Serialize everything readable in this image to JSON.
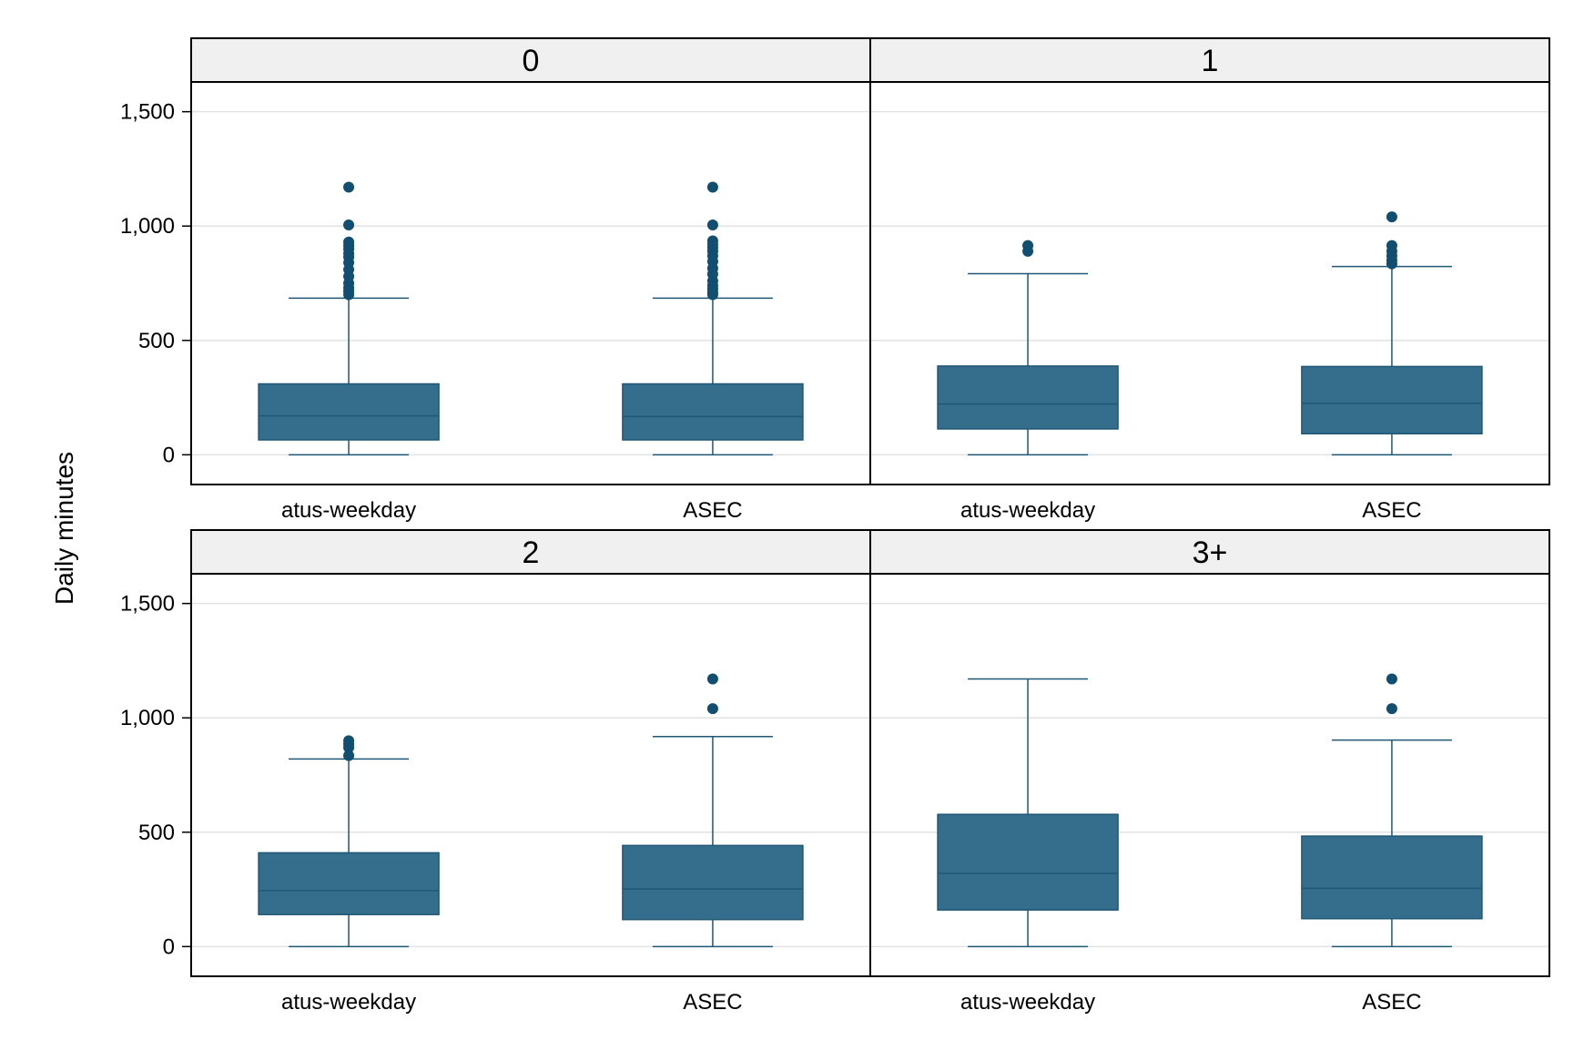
{
  "chart_data": {
    "type": "box",
    "ylabel": "Daily minutes",
    "yticks": [
      0,
      500,
      1000,
      1500
    ],
    "ytick_labels": [
      "0",
      "500",
      "1,000",
      "1,500"
    ],
    "ylim": [
      -130,
      1630
    ],
    "categories": [
      "atus-weekday",
      "ASEC"
    ],
    "grid": true,
    "colors": {
      "box_fill": "#346e8c",
      "box_line": "#1f5775",
      "outlier": "#124e70",
      "strip_bg": "#f0f0f0",
      "grid": "#e2e2e2"
    },
    "panels": [
      {
        "label": "0",
        "boxes": [
          {
            "category": "atus-weekday",
            "whisker_low": 0,
            "q1": 65,
            "median": 170,
            "q3": 310,
            "whisker_high": 685,
            "outliers": [
              700,
              715,
              730,
              750,
              780,
              810,
              840,
              865,
              880,
              900,
              915,
              930,
              1005,
              1170
            ]
          },
          {
            "category": "ASEC",
            "whisker_low": 0,
            "q1": 65,
            "median": 167,
            "q3": 310,
            "whisker_high": 685,
            "outliers": [
              700,
              710,
              725,
              740,
              760,
              790,
              815,
              845,
              870,
              890,
              905,
              920,
              935,
              1005,
              1170
            ]
          }
        ]
      },
      {
        "label": "1",
        "boxes": [
          {
            "category": "atus-weekday",
            "whisker_low": 0,
            "q1": 113,
            "median": 222,
            "q3": 388,
            "whisker_high": 792,
            "outliers": [
              890,
              915
            ]
          },
          {
            "category": "ASEC",
            "whisker_low": 0,
            "q1": 92,
            "median": 225,
            "q3": 386,
            "whisker_high": 823,
            "outliers": [
              835,
              850,
              870,
              890,
              915,
              1040
            ]
          }
        ]
      },
      {
        "label": "2",
        "boxes": [
          {
            "category": "atus-weekday",
            "whisker_low": 0,
            "q1": 140,
            "median": 245,
            "q3": 410,
            "whisker_high": 820,
            "outliers": [
              835,
              870,
              885,
              900
            ]
          },
          {
            "category": "ASEC",
            "whisker_low": 0,
            "q1": 118,
            "median": 252,
            "q3": 442,
            "whisker_high": 918,
            "outliers": [
              1040,
              1170
            ]
          }
        ]
      },
      {
        "label": "3+",
        "boxes": [
          {
            "category": "atus-weekday",
            "whisker_low": 0,
            "q1": 160,
            "median": 320,
            "q3": 578,
            "whisker_high": 1170,
            "outliers": []
          },
          {
            "category": "ASEC",
            "whisker_low": 0,
            "q1": 122,
            "median": 255,
            "q3": 483,
            "whisker_high": 903,
            "outliers": [
              1040,
              1170
            ]
          }
        ]
      }
    ]
  }
}
